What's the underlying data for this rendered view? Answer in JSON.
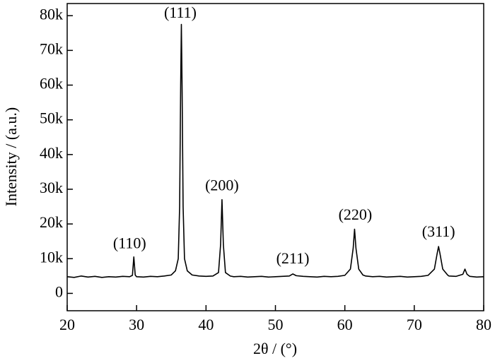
{
  "chart_data": {
    "type": "line",
    "xlabel": "2θ / (°)",
    "ylabel": "Intensity / (a.u.)",
    "x": [
      20,
      21,
      22,
      23,
      24,
      25,
      26,
      27,
      28,
      29,
      29.4,
      29.6,
      29.8,
      30,
      31,
      32,
      33,
      34,
      35,
      35.6,
      36,
      36.2,
      36.35,
      36.45,
      36.55,
      36.7,
      36.9,
      37.3,
      38,
      39,
      40,
      41,
      41.8,
      42.1,
      42.3,
      42.5,
      42.8,
      43.5,
      44,
      45,
      46,
      47,
      48,
      49,
      50,
      51,
      52,
      52.5,
      53,
      54,
      55,
      56,
      57,
      58,
      59,
      60,
      60.8,
      61.2,
      61.4,
      61.6,
      62,
      62.6,
      63,
      64,
      65,
      66,
      67,
      68,
      69,
      70,
      71,
      72,
      72.9,
      73.3,
      73.5,
      73.7,
      74.1,
      74.8,
      75,
      76,
      77,
      77.3,
      77.6,
      78,
      79,
      80
    ],
    "series": [
      {
        "color": "#000000",
        "values": [
          4800,
          4600,
          5000,
          4700,
          4900,
          4600,
          4800,
          4700,
          4900,
          4800,
          5200,
          10500,
          5300,
          4800,
          4700,
          4900,
          4800,
          5000,
          5300,
          6500,
          10000,
          25000,
          60000,
          77500,
          60000,
          25000,
          10000,
          6500,
          5300,
          5000,
          4900,
          5000,
          6000,
          14000,
          27000,
          14000,
          6000,
          5000,
          4800,
          4900,
          4700,
          4800,
          4900,
          4700,
          4800,
          4900,
          5000,
          5600,
          5100,
          4900,
          4800,
          4700,
          4900,
          4800,
          4900,
          5200,
          7000,
          13000,
          18500,
          13000,
          7000,
          5300,
          5000,
          4800,
          4900,
          4700,
          4800,
          4900,
          4700,
          4800,
          4900,
          5200,
          7000,
          11500,
          13500,
          11500,
          7000,
          5300,
          5000,
          4900,
          5500,
          7000,
          5500,
          4900,
          4700,
          4800
        ]
      }
    ],
    "xlim": [
      20,
      80
    ],
    "xticks": [
      20,
      30,
      40,
      50,
      60,
      70,
      80
    ],
    "ylim": [
      -5000,
      83500
    ],
    "yticks": [
      0,
      {
        "value": 10000,
        "label": "10k"
      },
      {
        "value": 20000,
        "label": "20k"
      },
      {
        "value": 30000,
        "label": "30k"
      },
      {
        "value": 40000,
        "label": "40k"
      },
      {
        "value": 50000,
        "label": "50k"
      },
      {
        "value": 60000,
        "label": "60k"
      },
      {
        "value": 70000,
        "label": "70k"
      },
      {
        "value": 80000,
        "label": "80k"
      }
    ],
    "annotations": [
      {
        "text": "(110)",
        "x": 29,
        "y": 14000
      },
      {
        "text": "(111)",
        "x": 36.3,
        "y": 80500
      },
      {
        "text": "(200)",
        "x": 42.3,
        "y": 30700
      },
      {
        "text": "(211)",
        "x": 52.5,
        "y": 9700
      },
      {
        "text": "(220)",
        "x": 61.5,
        "y": 22300
      },
      {
        "text": "(311)",
        "x": 73.5,
        "y": 17400
      }
    ]
  }
}
